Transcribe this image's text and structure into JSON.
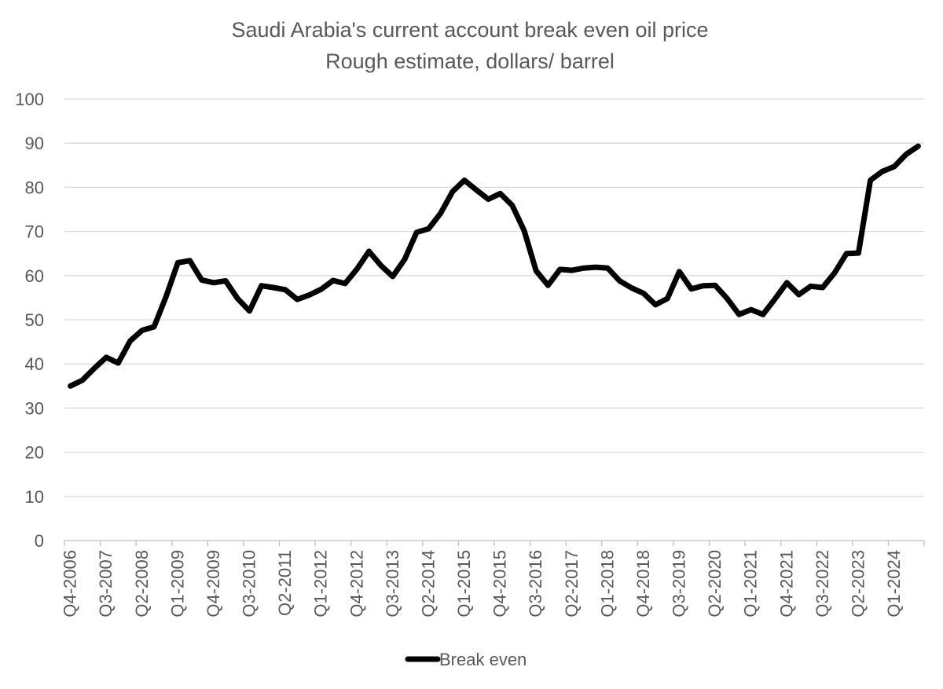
{
  "chart_data": {
    "type": "line",
    "title": "Saudi Arabia's current account break even oil price",
    "subtitle": "Rough estimate, dollars/ barrel",
    "xlabel": "",
    "ylabel": "",
    "ylim": [
      0,
      100
    ],
    "yticks": [
      0,
      10,
      20,
      30,
      40,
      50,
      60,
      70,
      80,
      90,
      100
    ],
    "grid": true,
    "legend_position": "bottom",
    "x_tick_labels": [
      "Q4-2006",
      "Q3-2007",
      "Q2-2008",
      "Q1-2009",
      "Q4-2009",
      "Q3-2010",
      "Q2-2011",
      "Q1-2012",
      "Q4-2012",
      "Q3-2013",
      "Q2-2014",
      "Q1-2015",
      "Q4-2015",
      "Q3-2016",
      "Q2-2017",
      "Q1-2018",
      "Q4-2018",
      "Q3-2019",
      "Q2-2020",
      "Q1-2021",
      "Q4-2021",
      "Q3-2022",
      "Q2-2023",
      "Q1-2024"
    ],
    "x": [
      "Q4-2006",
      "Q1-2007",
      "Q2-2007",
      "Q3-2007",
      "Q4-2007",
      "Q1-2008",
      "Q2-2008",
      "Q3-2008",
      "Q4-2008",
      "Q1-2009",
      "Q2-2009",
      "Q3-2009",
      "Q4-2009",
      "Q1-2010",
      "Q2-2010",
      "Q3-2010",
      "Q4-2010",
      "Q1-2011",
      "Q2-2011",
      "Q3-2011",
      "Q4-2011",
      "Q1-2012",
      "Q2-2012",
      "Q3-2012",
      "Q4-2012",
      "Q1-2013",
      "Q2-2013",
      "Q3-2013",
      "Q4-2013",
      "Q1-2014",
      "Q2-2014",
      "Q3-2014",
      "Q4-2014",
      "Q1-2015",
      "Q2-2015",
      "Q3-2015",
      "Q4-2015",
      "Q1-2016",
      "Q2-2016",
      "Q3-2016",
      "Q4-2016",
      "Q1-2017",
      "Q2-2017",
      "Q3-2017",
      "Q4-2017",
      "Q1-2018",
      "Q2-2018",
      "Q3-2018",
      "Q4-2018",
      "Q1-2019",
      "Q2-2019",
      "Q3-2019",
      "Q4-2019",
      "Q1-2020",
      "Q2-2020",
      "Q3-2020",
      "Q4-2020",
      "Q1-2021",
      "Q2-2021",
      "Q3-2021",
      "Q4-2021",
      "Q1-2022",
      "Q2-2022",
      "Q3-2022",
      "Q4-2022",
      "Q1-2023",
      "Q2-2023",
      "Q3-2023",
      "Q4-2023",
      "Q1-2024",
      "Q2-2024",
      "Q3-2024"
    ],
    "series": [
      {
        "name": "Break even",
        "color": "#000000",
        "values": [
          35.0,
          36.3,
          39.0,
          41.5,
          40.2,
          45.2,
          47.6,
          48.4,
          55.2,
          62.9,
          63.4,
          59.0,
          58.4,
          58.8,
          54.8,
          52.0,
          57.7,
          57.3,
          56.8,
          54.6,
          55.6,
          56.9,
          58.9,
          58.2,
          61.5,
          65.5,
          62.3,
          59.8,
          63.7,
          69.8,
          70.6,
          74.1,
          79.0,
          81.6,
          79.4,
          77.3,
          78.6,
          75.9,
          70.2,
          61.1,
          57.8,
          61.4,
          61.2,
          61.7,
          61.9,
          61.7,
          58.8,
          57.2,
          56.0,
          53.4,
          54.8,
          60.9,
          57.0,
          57.7,
          57.8,
          54.8,
          51.2,
          52.3,
          51.2,
          54.7,
          58.4,
          55.7,
          57.6,
          57.3,
          60.6,
          65.0,
          65.1,
          81.6,
          83.6,
          84.7,
          87.5,
          89.3
        ]
      }
    ]
  }
}
